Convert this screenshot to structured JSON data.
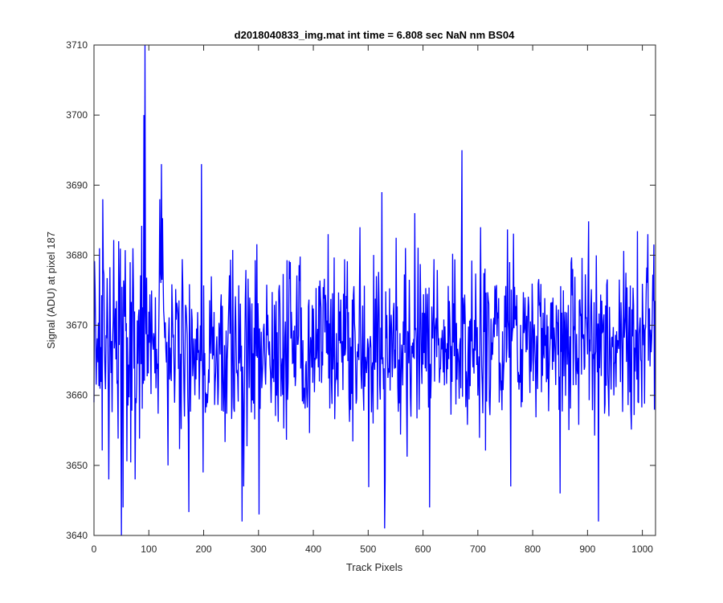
{
  "chart_data": {
    "type": "line",
    "title": "d2018040833_img.mat int time = 6.808 sec  NaN nm BS04",
    "xlabel": "Track Pixels",
    "ylabel": "Signal (ADU) at pixel 187",
    "xlim": [
      0,
      1024
    ],
    "ylim": [
      3640,
      3710
    ],
    "xticks": [
      0,
      100,
      200,
      300,
      400,
      500,
      600,
      700,
      800,
      900,
      1000
    ],
    "yticks": [
      3640,
      3650,
      3660,
      3670,
      3680,
      3690,
      3700,
      3710
    ],
    "xtick_labels": [
      "0",
      "100",
      "200",
      "300",
      "400",
      "500",
      "600",
      "700",
      "800",
      "900",
      "1000"
    ],
    "ytick_labels": [
      "3640",
      "3650",
      "3660",
      "3670",
      "3680",
      "3690",
      "3700",
      "3710"
    ],
    "grid": false,
    "series": [
      {
        "color": "#0000ff",
        "n_points": 1024,
        "baseline": 3667,
        "noise_sd": 6,
        "y_clip": [
          3641,
          3709
        ],
        "notable_points": [
          {
            "x": 0,
            "y": 3659
          },
          {
            "x": 10,
            "y": 3681
          },
          {
            "x": 16,
            "y": 3688
          },
          {
            "x": 27,
            "y": 3648
          },
          {
            "x": 45,
            "y": 3682
          },
          {
            "x": 50,
            "y": 3640
          },
          {
            "x": 53,
            "y": 3644
          },
          {
            "x": 66,
            "y": 3679
          },
          {
            "x": 75,
            "y": 3648
          },
          {
            "x": 91,
            "y": 3700
          },
          {
            "x": 93,
            "y": 3710
          },
          {
            "x": 120,
            "y": 3688
          },
          {
            "x": 123,
            "y": 3693
          },
          {
            "x": 135,
            "y": 3650
          },
          {
            "x": 196,
            "y": 3693
          },
          {
            "x": 199,
            "y": 3649
          },
          {
            "x": 270,
            "y": 3642
          },
          {
            "x": 273,
            "y": 3647
          },
          {
            "x": 301,
            "y": 3643
          },
          {
            "x": 485,
            "y": 3684
          },
          {
            "x": 525,
            "y": 3689
          },
          {
            "x": 530,
            "y": 3641
          },
          {
            "x": 585,
            "y": 3686
          },
          {
            "x": 612,
            "y": 3644
          },
          {
            "x": 671,
            "y": 3695
          },
          {
            "x": 705,
            "y": 3684
          },
          {
            "x": 760,
            "y": 3647
          },
          {
            "x": 850,
            "y": 3646
          },
          {
            "x": 920,
            "y": 3642
          },
          {
            "x": 1010,
            "y": 3683
          }
        ]
      }
    ]
  }
}
